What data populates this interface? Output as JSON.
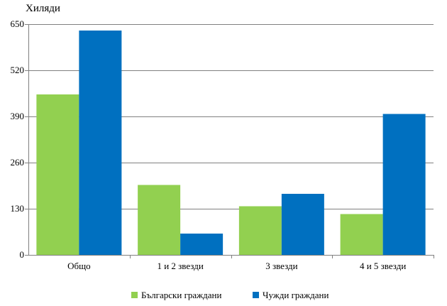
{
  "chart_data": {
    "type": "bar",
    "unit_label": "Хиляди",
    "categories": [
      "Общо",
      "1 и 2 звезди",
      "3 звезди",
      "4 и 5 звезди"
    ],
    "series": [
      {
        "name": "Български граждани",
        "color": "#92d050",
        "values": [
          452,
          197,
          137,
          115
        ]
      },
      {
        "name": "Чужди граждани",
        "color": "#0070c0",
        "values": [
          632,
          60,
          172,
          397
        ]
      }
    ],
    "ylim": [
      0,
      650
    ],
    "yticks": [
      0,
      130,
      260,
      390,
      520,
      650
    ],
    "ytick_labels": [
      "0",
      "130",
      "260",
      "390",
      "520",
      "650"
    ],
    "grid": true,
    "legend_position": "bottom"
  }
}
